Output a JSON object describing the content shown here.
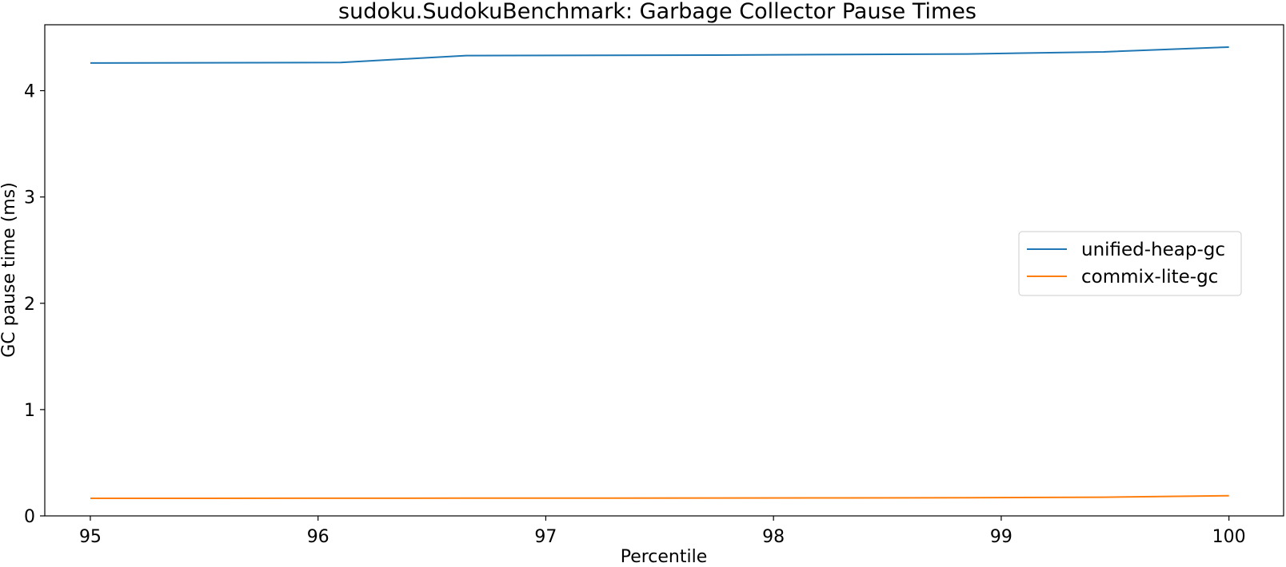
{
  "chart_data": {
    "type": "line",
    "title": "sudoku.SudokuBenchmark: Garbage Collector Pause Times",
    "xlabel": "Percentile",
    "ylabel": "GC pause time (ms)",
    "xlim": [
      94.8,
      100.24
    ],
    "ylim": [
      0,
      4.62
    ],
    "xticks": [
      95,
      96,
      97,
      98,
      99,
      100
    ],
    "yticks": [
      0,
      1,
      2,
      3,
      4
    ],
    "grid": false,
    "legend_position": "center-right",
    "series": [
      {
        "name": "unified-heap-gc",
        "color": "#1f77b4",
        "x": [
          95,
          96.1,
          96.65,
          97.75,
          98.3,
          98.85,
          99.45,
          100
        ],
        "y": [
          4.26,
          4.265,
          4.33,
          4.335,
          4.34,
          4.345,
          4.365,
          4.41
        ]
      },
      {
        "name": "commix-lite-gc",
        "color": "#ff7f0e",
        "x": [
          95,
          96.1,
          96.65,
          97.75,
          98.3,
          98.85,
          99.45,
          100
        ],
        "y": [
          0.165,
          0.166,
          0.167,
          0.168,
          0.169,
          0.171,
          0.176,
          0.19
        ]
      }
    ]
  }
}
